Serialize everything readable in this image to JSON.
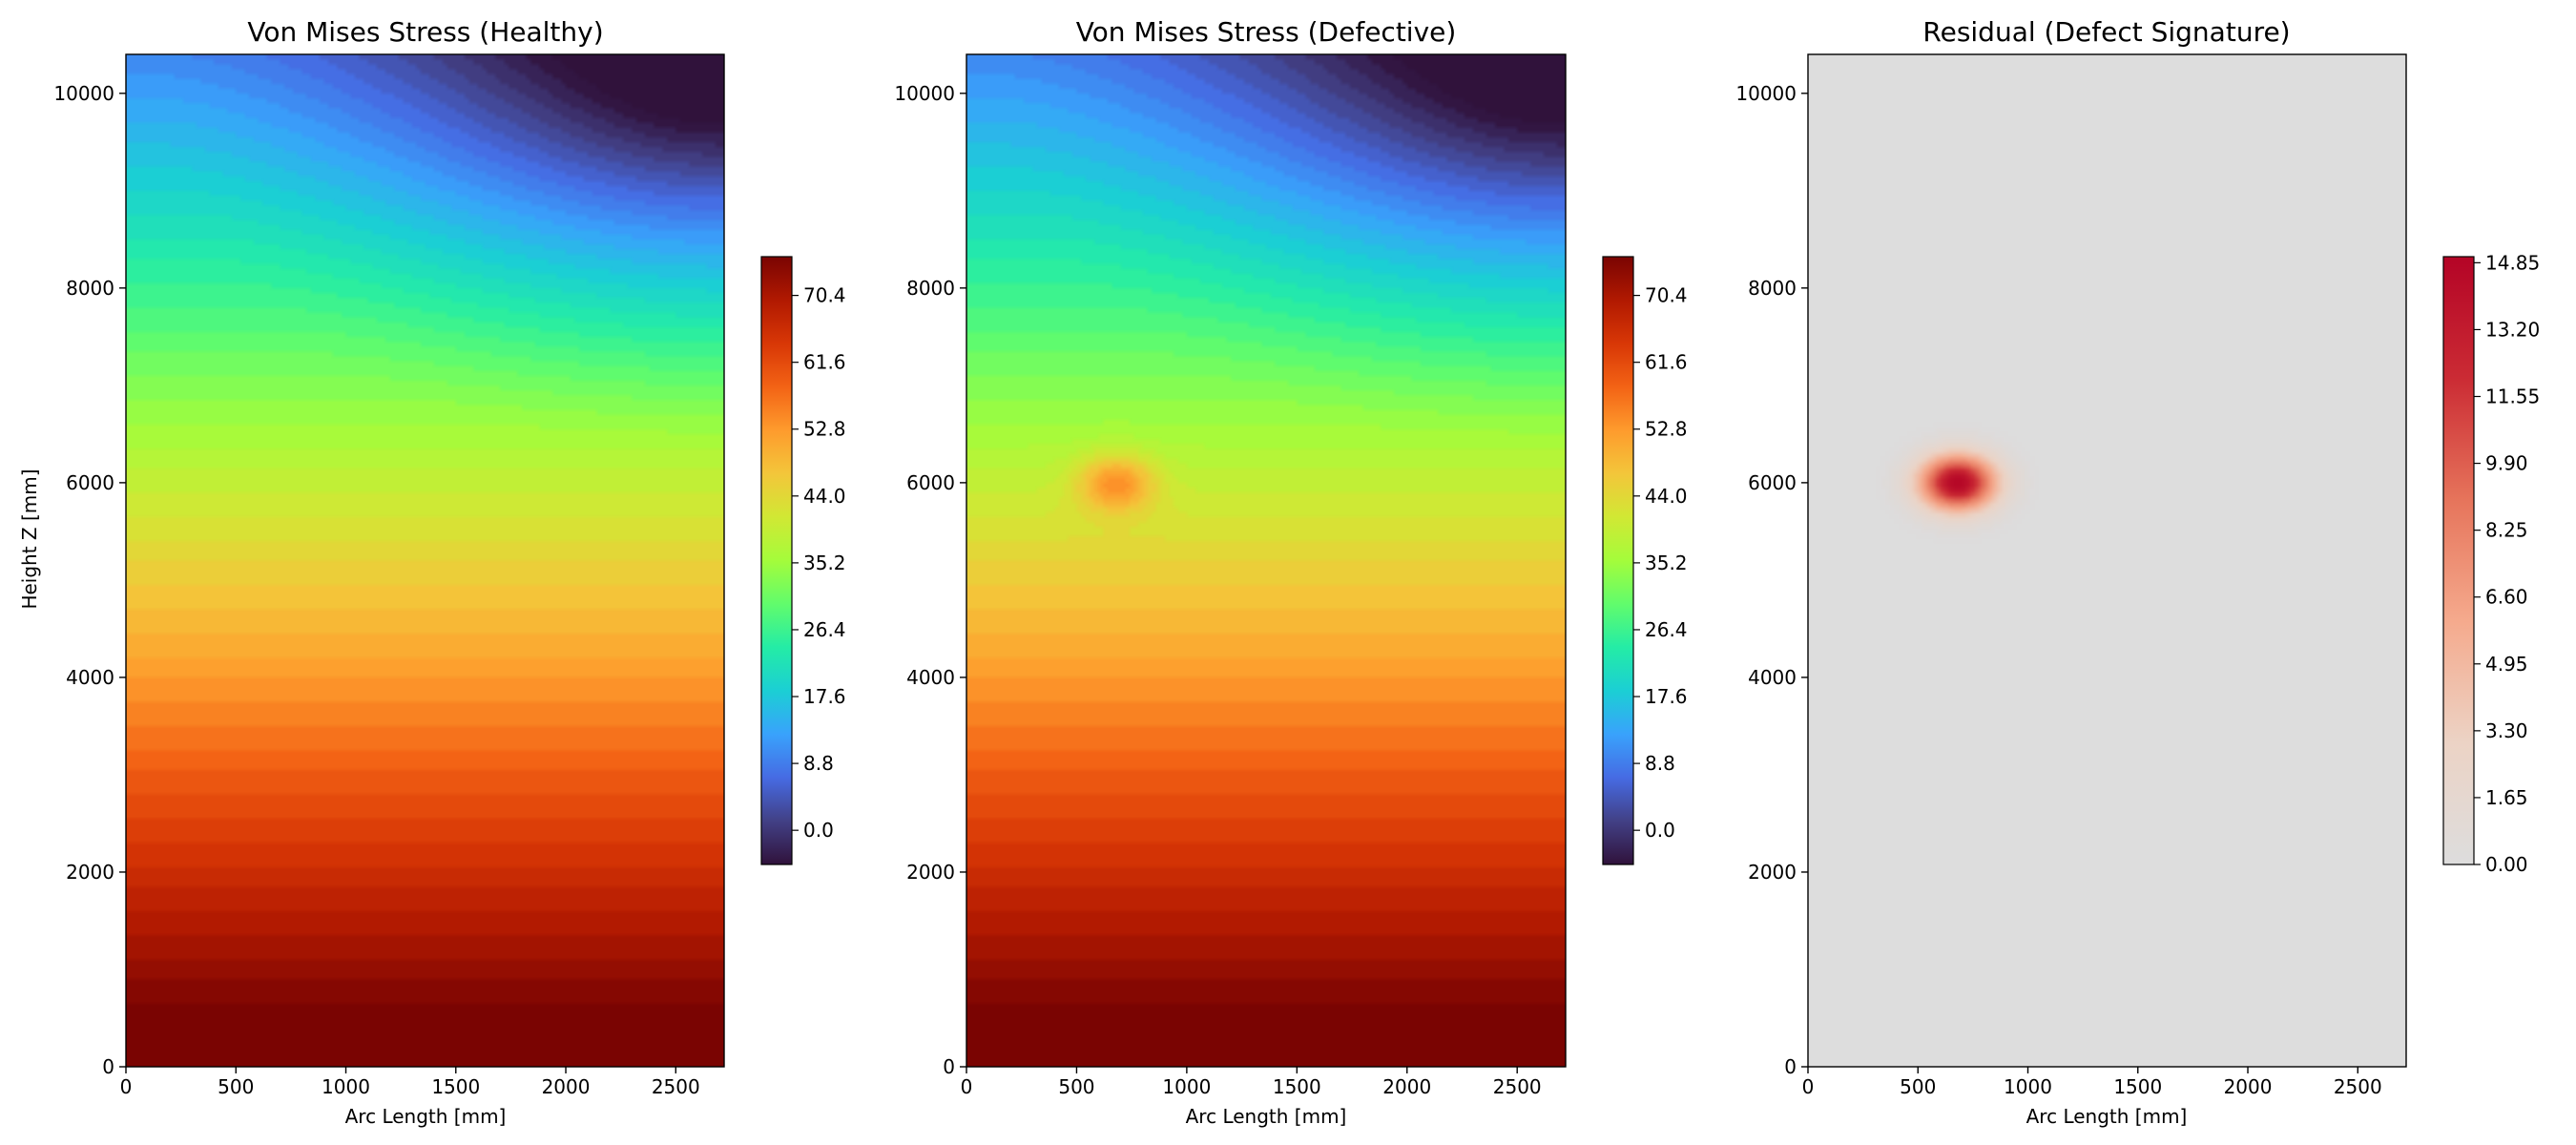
{
  "chart_data": [
    {
      "type": "heatmap",
      "title": "Von Mises Stress (Healthy)",
      "xlabel": "Arc Length [mm]",
      "ylabel": "Height Z [mm]",
      "xlim": [
        0,
        2720
      ],
      "ylim": [
        0,
        10400
      ],
      "xticks": [
        0,
        500,
        1000,
        1500,
        2000,
        2500
      ],
      "yticks": [
        0,
        2000,
        4000,
        6000,
        8000,
        10000
      ],
      "colormap": "turbo",
      "colorbar": {
        "ticks": [
          "0.0",
          "8.8",
          "17.6",
          "26.4",
          "35.2",
          "44.0",
          "52.8",
          "61.6",
          "70.4"
        ],
        "range": [
          -4.5,
          75.5
        ]
      },
      "field": {
        "base_at_bottom": 75,
        "gradient_per_1000mm_height": -6.7,
        "top_right_minimum": -4.5,
        "defect": null
      }
    },
    {
      "type": "heatmap",
      "title": "Von Mises Stress (Defective)",
      "xlabel": "Arc Length [mm]",
      "ylabel": "",
      "xlim": [
        0,
        2720
      ],
      "ylim": [
        0,
        10400
      ],
      "xticks": [
        0,
        500,
        1000,
        1500,
        2000,
        2500
      ],
      "yticks": [
        0,
        2000,
        4000,
        6000,
        8000,
        10000
      ],
      "colormap": "turbo",
      "colorbar": {
        "ticks": [
          "0.0",
          "8.8",
          "17.6",
          "26.4",
          "35.2",
          "44.0",
          "52.8",
          "61.6",
          "70.4"
        ],
        "range": [
          -4.5,
          75.5
        ]
      },
      "field": {
        "base_at_bottom": 75,
        "gradient_per_1000mm_height": -6.7,
        "top_right_minimum": -4.5,
        "defect": {
          "x": 680,
          "z": 6000,
          "peak": 15.0
        }
      }
    },
    {
      "type": "heatmap",
      "title": "Residual (Defect Signature)",
      "xlabel": "Arc Length [mm]",
      "ylabel": "",
      "xlim": [
        0,
        2720
      ],
      "ylim": [
        0,
        10400
      ],
      "xticks": [
        0,
        500,
        1000,
        1500,
        2000,
        2500
      ],
      "yticks": [
        0,
        2000,
        4000,
        6000,
        8000,
        10000
      ],
      "colormap": "coolwarm-upper",
      "colorbar": {
        "ticks": [
          "0.00",
          "1.65",
          "3.30",
          "4.95",
          "6.60",
          "8.25",
          "9.90",
          "11.55",
          "13.20",
          "14.85"
        ],
        "range": [
          0,
          15.0
        ]
      },
      "field": {
        "residual": {
          "x": 680,
          "z": 6000,
          "peak": 15.0
        }
      }
    }
  ]
}
